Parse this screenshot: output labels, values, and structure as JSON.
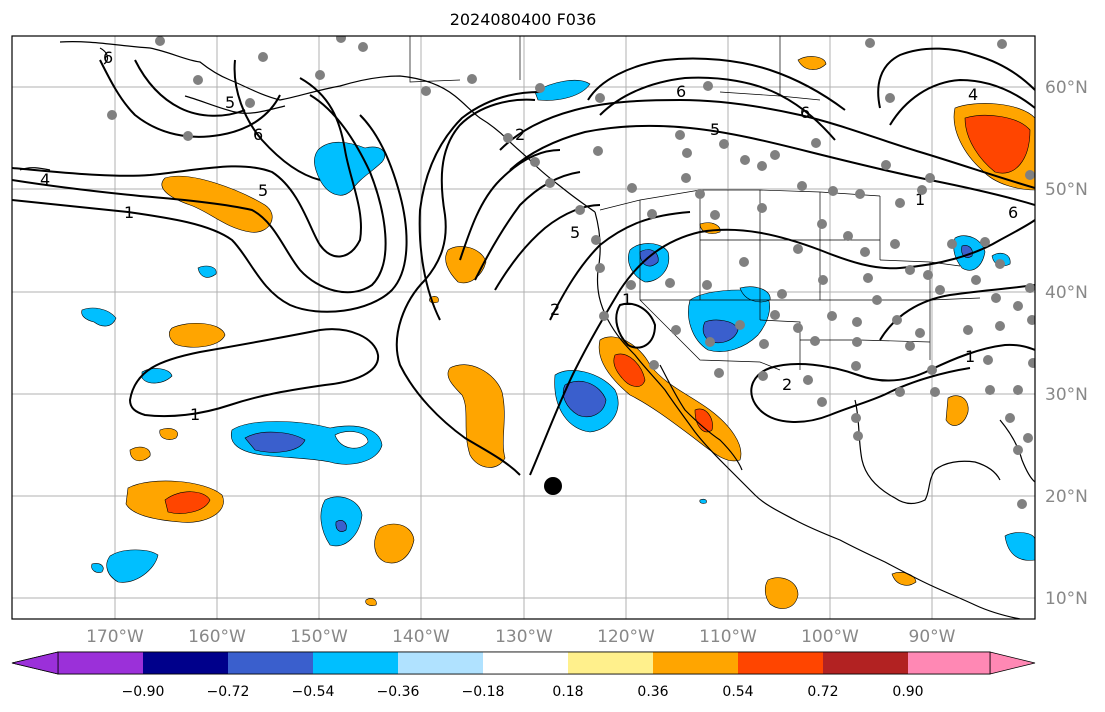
{
  "title": "2024080400 F036",
  "map": {
    "lon_labels": [
      "170°W",
      "160°W",
      "150°W",
      "140°W",
      "130°W",
      "120°W",
      "110°W",
      "100°W",
      "90°W"
    ],
    "lat_labels": [
      "60°N",
      "50°N",
      "40°N",
      "30°N",
      "20°N",
      "10°N"
    ],
    "contour_labels": [
      "6",
      "1",
      "5",
      "4",
      "6",
      "1",
      "5",
      "5",
      "2",
      "1",
      "2",
      "6",
      "5",
      "6",
      "2",
      "1",
      "1",
      "6",
      "4"
    ]
  },
  "colorbar": {
    "tick_labels": [
      "−0.90",
      "−0.72",
      "−0.54",
      "−0.36",
      "−0.18",
      "0.18",
      "0.36",
      "0.54",
      "0.72",
      "0.90"
    ],
    "colors": [
      "#9b30d9",
      "#00008b",
      "#3a5fcd",
      "#00bfff",
      "#b0e2ff",
      "#ffffff",
      "#fff08c",
      "#ffa500",
      "#ff4500",
      "#b22222",
      "#ff88b4"
    ]
  }
}
